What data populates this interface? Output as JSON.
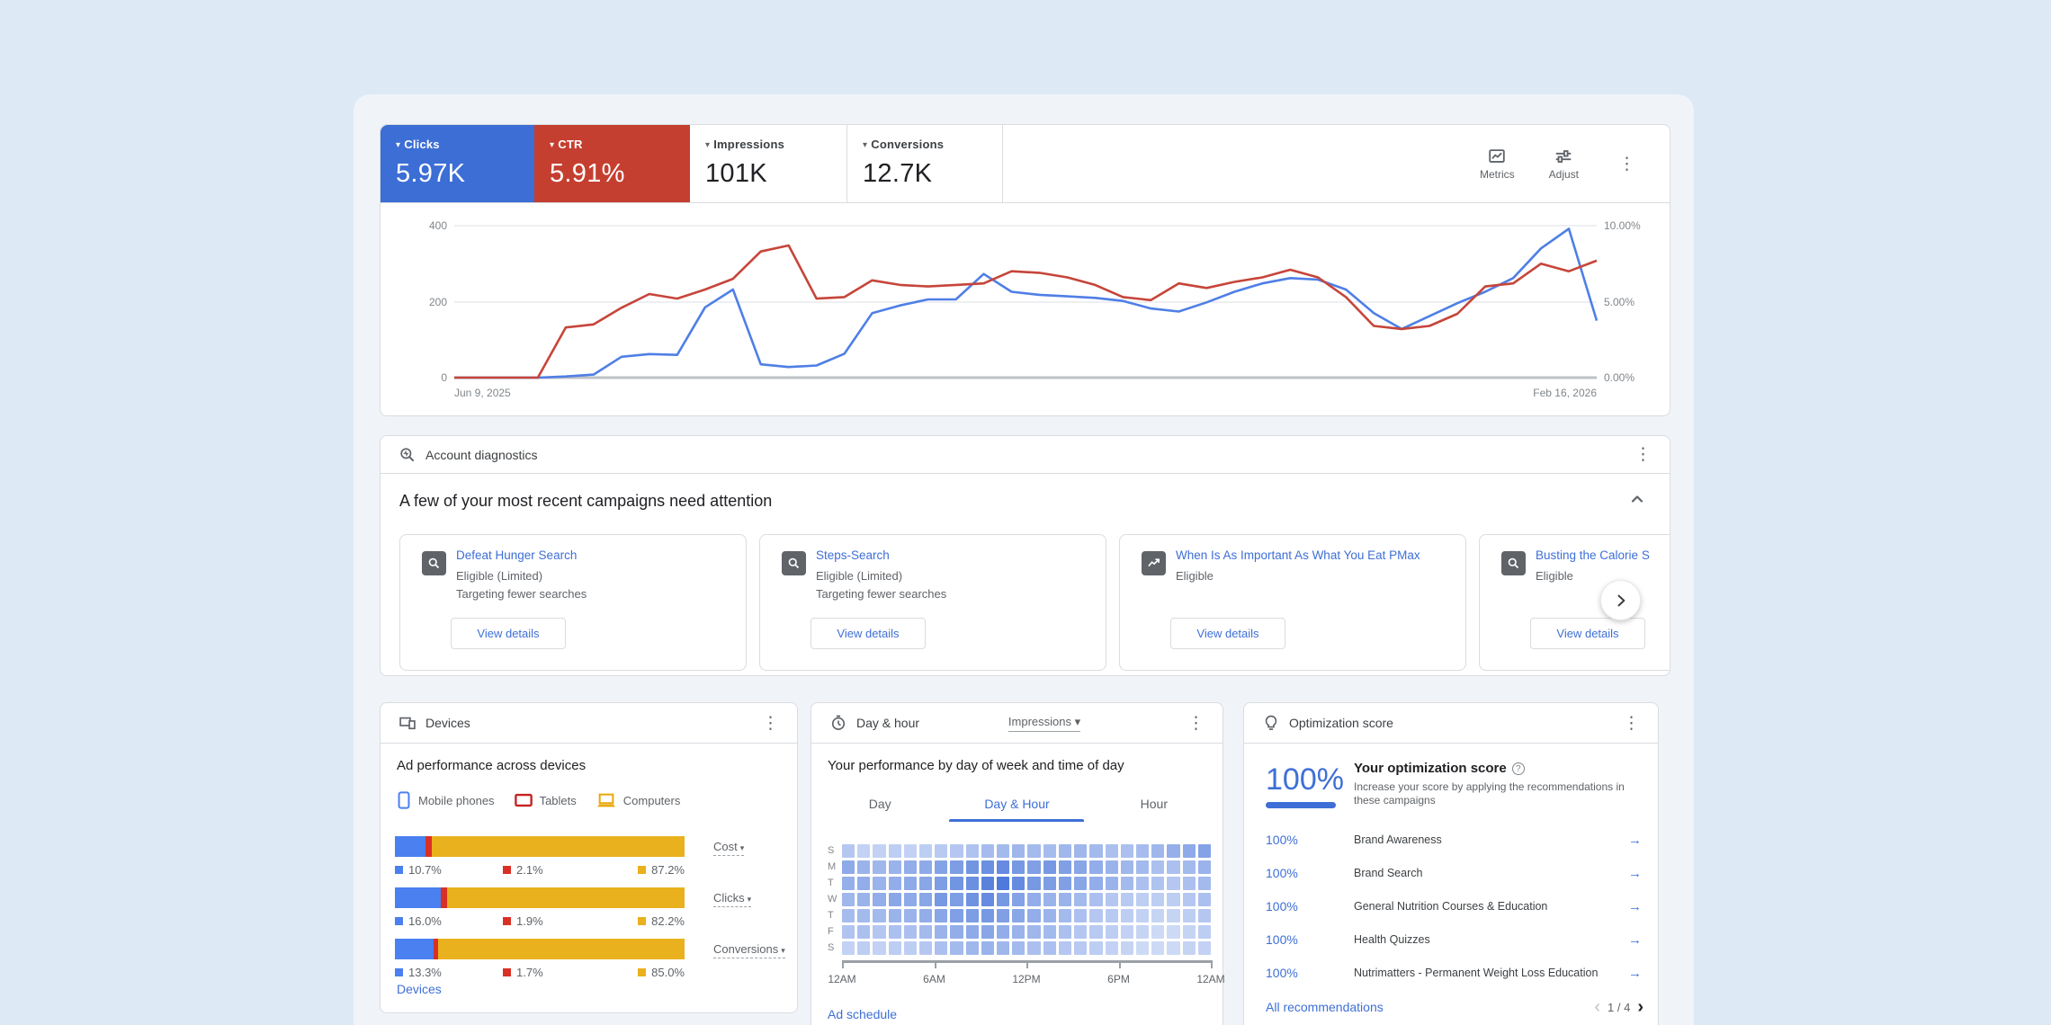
{
  "metrics_bar": {
    "cards": [
      {
        "label": "Clicks",
        "value": "5.97K",
        "bg": "#3c6ed5",
        "accent": true
      },
      {
        "label": "CTR",
        "value": "5.91%",
        "bg": "#c53f30",
        "accent": true
      },
      {
        "label": "Impressions",
        "value": "101K",
        "bg": "#ffffff",
        "accent": false
      },
      {
        "label": "Conversions",
        "value": "12.7K",
        "bg": "#ffffff",
        "accent": false
      }
    ],
    "tools": {
      "metrics_label": "Metrics",
      "adjust_label": "Adjust"
    }
  },
  "chart_data": [
    {
      "id": "performance_timeseries",
      "type": "line",
      "x_start_label": "Jun 9, 2025",
      "x_end_label": "Feb 16, 2026",
      "left_axis": {
        "ticks": [
          "400",
          "200",
          "0"
        ],
        "range": [
          0,
          400
        ]
      },
      "right_axis": {
        "ticks": [
          "10.00%",
          "5.00%",
          "0.00%"
        ],
        "range": [
          0,
          10
        ]
      },
      "grid": true,
      "series": [
        {
          "name": "Clicks",
          "axis": "left",
          "color": "#4f7fe6",
          "values": [
            0,
            0,
            0,
            0,
            3,
            8,
            55,
            62,
            60,
            185,
            232,
            35,
            28,
            32,
            63,
            170,
            190,
            206,
            206,
            273,
            226,
            218,
            214,
            210,
            202,
            182,
            174,
            198,
            226,
            248,
            262,
            258,
            232,
            170,
            128,
            162,
            196,
            226,
            262,
            340,
            392,
            150
          ]
        },
        {
          "name": "CTR",
          "axis": "right",
          "color": "#c6453a",
          "values": [
            0,
            0,
            0,
            0,
            3.3,
            3.5,
            4.6,
            5.5,
            5.2,
            5.8,
            6.5,
            8.3,
            8.7,
            5.2,
            5.3,
            6.4,
            6.1,
            6.0,
            6.1,
            6.2,
            7.0,
            6.9,
            6.6,
            6.1,
            5.3,
            5.1,
            6.2,
            5.9,
            6.3,
            6.6,
            7.1,
            6.6,
            5.3,
            3.4,
            3.2,
            3.4,
            4.2,
            6.0,
            6.2,
            7.5,
            7.0,
            7.7
          ]
        }
      ]
    },
    {
      "id": "device_split",
      "type": "bar",
      "stacked": true,
      "categories": [
        "Cost",
        "Clicks",
        "Conversions"
      ],
      "series": [
        {
          "name": "Mobile phones",
          "color": "#4a80f0",
          "values": [
            10.7,
            16.0,
            13.3
          ]
        },
        {
          "name": "Tablets",
          "color": "#d93025",
          "values": [
            2.1,
            1.9,
            1.7
          ]
        },
        {
          "name": "Computers",
          "color": "#e9b11d",
          "values": [
            87.2,
            82.2,
            85.0
          ]
        }
      ],
      "labels": [
        [
          "10.7%",
          "2.1%",
          "87.2%"
        ],
        [
          "16.0%",
          "1.9%",
          "82.2%"
        ],
        [
          "13.3%",
          "1.7%",
          "85.0%"
        ]
      ]
    },
    {
      "id": "day_hour_heatmap",
      "type": "heatmap",
      "metric": "Impressions",
      "rows": [
        "S",
        "M",
        "T",
        "W",
        "T",
        "F",
        "S"
      ],
      "x_labels": [
        "12AM",
        "6AM",
        "12PM",
        "6PM",
        "12AM"
      ],
      "values": [
        [
          0.3,
          0.22,
          0.22,
          0.25,
          0.22,
          0.25,
          0.28,
          0.3,
          0.33,
          0.38,
          0.4,
          0.42,
          0.4,
          0.38,
          0.42,
          0.42,
          0.4,
          0.35,
          0.35,
          0.38,
          0.42,
          0.48,
          0.52,
          0.58
        ],
        [
          0.52,
          0.45,
          0.42,
          0.45,
          0.5,
          0.52,
          0.58,
          0.62,
          0.68,
          0.72,
          0.75,
          0.65,
          0.6,
          0.65,
          0.6,
          0.55,
          0.5,
          0.45,
          0.42,
          0.4,
          0.35,
          0.35,
          0.4,
          0.45
        ],
        [
          0.48,
          0.5,
          0.45,
          0.5,
          0.52,
          0.55,
          0.62,
          0.68,
          0.72,
          0.82,
          0.88,
          0.75,
          0.65,
          0.62,
          0.6,
          0.55,
          0.5,
          0.45,
          0.4,
          0.35,
          0.33,
          0.3,
          0.35,
          0.4
        ],
        [
          0.42,
          0.45,
          0.5,
          0.55,
          0.52,
          0.55,
          0.65,
          0.62,
          0.7,
          0.75,
          0.65,
          0.58,
          0.5,
          0.45,
          0.45,
          0.4,
          0.35,
          0.3,
          0.28,
          0.25,
          0.25,
          0.25,
          0.3,
          0.35
        ],
        [
          0.38,
          0.4,
          0.4,
          0.45,
          0.45,
          0.5,
          0.55,
          0.6,
          0.62,
          0.65,
          0.6,
          0.55,
          0.5,
          0.45,
          0.4,
          0.35,
          0.3,
          0.28,
          0.25,
          0.22,
          0.2,
          0.2,
          0.25,
          0.3
        ],
        [
          0.32,
          0.35,
          0.3,
          0.35,
          0.35,
          0.4,
          0.45,
          0.5,
          0.52,
          0.55,
          0.5,
          0.45,
          0.42,
          0.4,
          0.35,
          0.3,
          0.28,
          0.25,
          0.22,
          0.2,
          0.16,
          0.16,
          0.2,
          0.25
        ],
        [
          0.22,
          0.25,
          0.22,
          0.25,
          0.25,
          0.3,
          0.35,
          0.4,
          0.42,
          0.45,
          0.42,
          0.4,
          0.35,
          0.35,
          0.3,
          0.28,
          0.25,
          0.22,
          0.2,
          0.16,
          0.16,
          0.16,
          0.2,
          0.22
        ]
      ]
    }
  ],
  "diagnostics": {
    "title": "Account diagnostics",
    "section_title": "A few of your most recent campaigns need attention",
    "cards": [
      {
        "name": "Defeat Hunger Search",
        "status": "Eligible (Limited)",
        "note": "Targeting fewer searches",
        "cta": "View details"
      },
      {
        "name": "Steps-Search",
        "status": "Eligible (Limited)",
        "note": "Targeting fewer searches",
        "cta": "View details"
      },
      {
        "name": "When Is As Important As What You Eat PMax",
        "status": "Eligible",
        "note": "",
        "cta": "View details"
      },
      {
        "name": "Busting the Calorie S",
        "status": "Eligible",
        "note": "",
        "cta": "View details"
      }
    ]
  },
  "devices": {
    "title": "Devices",
    "subtitle": "Ad performance across devices",
    "legend": [
      "Mobile phones",
      "Tablets",
      "Computers"
    ],
    "footer_link": "Devices"
  },
  "dayhour": {
    "title": "Day & hour",
    "dropdown": "Impressions",
    "subtitle": "Your performance by day of week and time of day",
    "tabs": [
      "Day",
      "Day & Hour",
      "Hour"
    ],
    "footer_link": "Ad schedule"
  },
  "optimization": {
    "title": "Optimization score",
    "score": "100%",
    "headline": "Your optimization score",
    "help_glyph": "?",
    "description": "Increase your score by applying the recommendations in these campaigns",
    "rows": [
      {
        "score": "100%",
        "label": "Brand Awareness"
      },
      {
        "score": "100%",
        "label": "Brand Search"
      },
      {
        "score": "100%",
        "label": "General Nutrition Courses & Education"
      },
      {
        "score": "100%",
        "label": "Health Quizzes"
      },
      {
        "score": "100%",
        "label": "Nutrimatters - Permanent Weight Loss Education"
      }
    ],
    "footer_link": "All recommendations",
    "pagination": "1 / 4"
  }
}
